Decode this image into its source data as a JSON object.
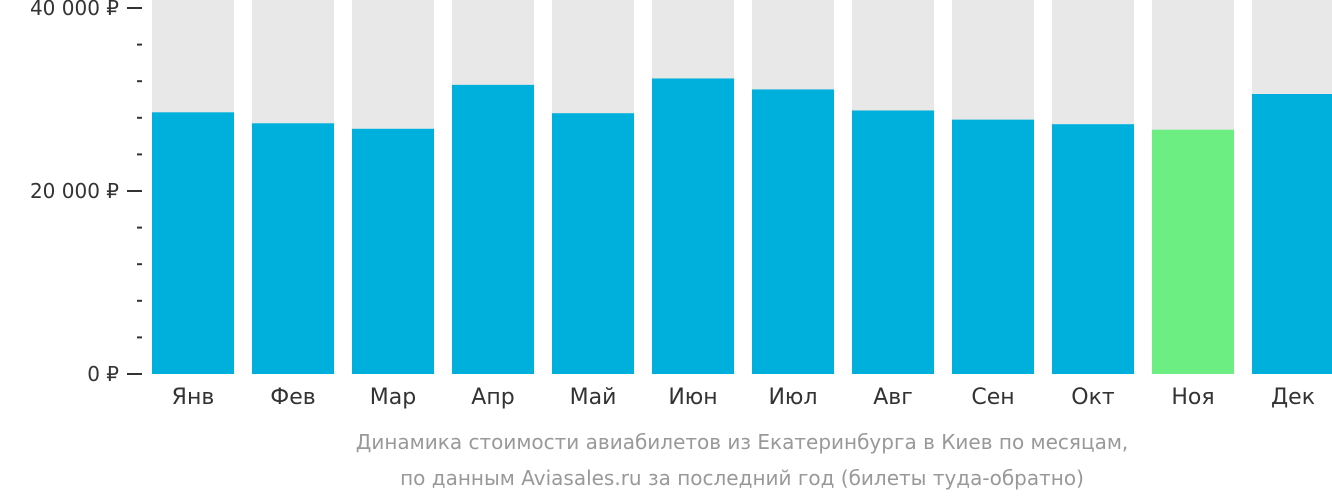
{
  "chart_data": {
    "type": "bar",
    "categories": [
      "Янв",
      "Фев",
      "Мар",
      "Апр",
      "Май",
      "Июн",
      "Июл",
      "Авг",
      "Сен",
      "Окт",
      "Ноя",
      "Дек"
    ],
    "values": [
      28600,
      27400,
      26800,
      31600,
      28500,
      32300,
      31100,
      28800,
      27800,
      27300,
      26700,
      30600
    ],
    "highlight_index": 10,
    "ylim": [
      0,
      40000
    ],
    "yticks": [
      {
        "value": 0,
        "label": "0 ₽"
      },
      {
        "value": 20000,
        "label": "20 000 ₽"
      },
      {
        "value": 40000,
        "label": "40 000 ₽"
      }
    ],
    "minor_tick_step": 4000,
    "grid": false,
    "colors": {
      "bar": "#00b0dc",
      "highlight": "#6cee83",
      "background_bar": "#e8e8e8",
      "axis_text": "#333333"
    }
  },
  "caption": {
    "line1": "Динамика стоимости авиабилетов из Екатеринбурга в Киев по месяцам,",
    "line2": "по данным Aviasales.ru за последний год (билеты туда-обратно)"
  }
}
